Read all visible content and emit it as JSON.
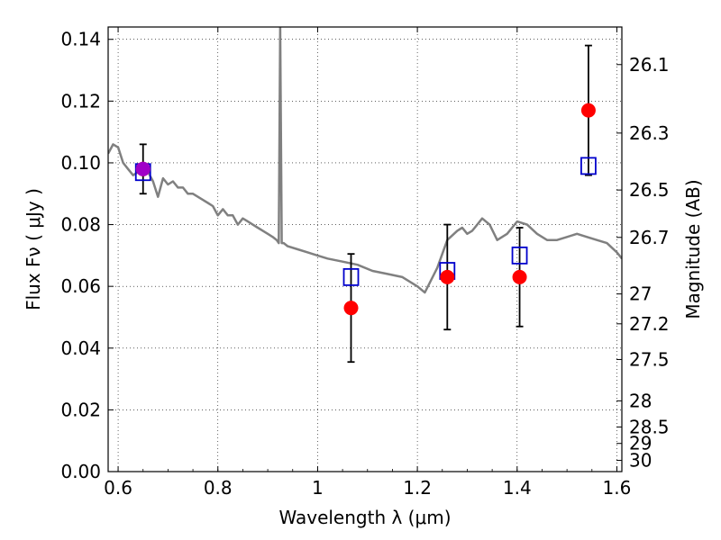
{
  "chart_data": {
    "type": "scatter",
    "title": "",
    "xlabel": "Wavelength  λ (μm)",
    "ylabel": "Flux  Fν  ( μJy )",
    "y2label": "Magnitude (AB)",
    "xlim": [
      0.58,
      1.61
    ],
    "ylim": [
      0.0,
      0.144
    ],
    "grid": true,
    "x_ticks": [
      0.6,
      0.8,
      1.0,
      1.2,
      1.4,
      1.6
    ],
    "x_tick_labels": [
      "0.6",
      "0.8",
      "1",
      "1.2",
      "1.4",
      "1.6"
    ],
    "y_ticks": [
      0.0,
      0.02,
      0.04,
      0.06,
      0.08,
      0.1,
      0.12,
      0.14
    ],
    "y_tick_labels": [
      "0.00",
      "0.02",
      "0.04",
      "0.06",
      "0.08",
      "0.10",
      "0.12",
      "0.14"
    ],
    "mag_ticks": [
      26.1,
      26.3,
      26.5,
      26.7,
      27,
      27.2,
      27.5,
      28,
      28.5,
      29,
      30
    ],
    "mag_tick_labels": [
      "26.1",
      "26.3",
      "26.5",
      "26.7",
      "27",
      "27.2",
      "27.5",
      "28",
      "28.5",
      "29",
      "30"
    ],
    "series": [
      {
        "kind": "line",
        "color": "#808080",
        "x": [
          0.58,
          0.59,
          0.6,
          0.61,
          0.62,
          0.63,
          0.64,
          0.65,
          0.66,
          0.67,
          0.68,
          0.69,
          0.7,
          0.71,
          0.72,
          0.73,
          0.74,
          0.75,
          0.76,
          0.77,
          0.78,
          0.79,
          0.8,
          0.81,
          0.82,
          0.83,
          0.84,
          0.85,
          0.86,
          0.87,
          0.88,
          0.89,
          0.9,
          0.91,
          0.918,
          0.922,
          0.925,
          0.928,
          0.932,
          0.94,
          0.96,
          0.98,
          1.0,
          1.02,
          1.05,
          1.08,
          1.11,
          1.14,
          1.17,
          1.2,
          1.215,
          1.24,
          1.26,
          1.28,
          1.29,
          1.3,
          1.31,
          1.32,
          1.33,
          1.345,
          1.36,
          1.38,
          1.4,
          1.42,
          1.44,
          1.46,
          1.48,
          1.5,
          1.52,
          1.54,
          1.56,
          1.58,
          1.6,
          1.61
        ],
        "y": [
          0.103,
          0.106,
          0.105,
          0.1,
          0.098,
          0.096,
          0.097,
          0.099,
          0.097,
          0.094,
          0.089,
          0.095,
          0.093,
          0.094,
          0.092,
          0.092,
          0.09,
          0.09,
          0.089,
          0.088,
          0.087,
          0.086,
          0.083,
          0.085,
          0.083,
          0.083,
          0.08,
          0.082,
          0.081,
          0.08,
          0.079,
          0.078,
          0.077,
          0.076,
          0.075,
          0.074,
          0.144,
          0.074,
          0.074,
          0.073,
          0.072,
          0.071,
          0.07,
          0.069,
          0.068,
          0.067,
          0.065,
          0.064,
          0.063,
          0.06,
          0.058,
          0.066,
          0.075,
          0.078,
          0.079,
          0.077,
          0.078,
          0.08,
          0.082,
          0.08,
          0.075,
          0.077,
          0.081,
          0.08,
          0.077,
          0.075,
          0.075,
          0.076,
          0.077,
          0.076,
          0.075,
          0.074,
          0.071,
          0.069
        ]
      },
      {
        "kind": "points",
        "marker": "square",
        "color": "#0000cc",
        "x": [
          0.65,
          1.067,
          1.26,
          1.405,
          1.543
        ],
        "y": [
          0.097,
          0.063,
          0.065,
          0.07,
          0.099
        ]
      },
      {
        "kind": "points",
        "marker": "circle",
        "color": "#ff0000",
        "x": [
          0.65,
          1.067,
          1.26,
          1.405,
          1.543
        ],
        "y": [
          0.098,
          0.053,
          0.063,
          0.063,
          0.117
        ],
        "err": [
          0.008,
          0.0175,
          0.017,
          0.016,
          0.021
        ]
      },
      {
        "kind": "points",
        "marker": "circle",
        "color": "#a000c8",
        "x": [
          0.65
        ],
        "y": [
          0.098
        ]
      }
    ]
  }
}
